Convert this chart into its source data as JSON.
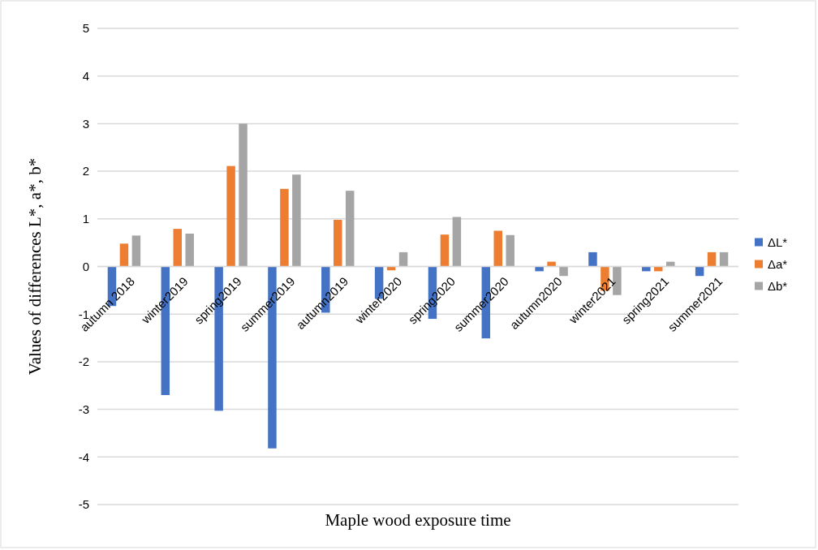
{
  "chart_data": {
    "type": "bar",
    "xlabel": "Maple wood exposure time",
    "ylabel": "Values of differences L*, a*, b*",
    "categories": [
      "autumn 2018",
      "winter2019",
      "spring2019",
      "summer2019",
      "autumn2019",
      "winter2020",
      "spring2020",
      "summer2020",
      "autumn2020",
      "winter2021",
      "spring2021",
      "summer2021"
    ],
    "series": [
      {
        "name": "ΔL*",
        "color": "#4472c4",
        "values": [
          -0.83,
          -2.7,
          -3.03,
          -3.82,
          -0.97,
          -0.68,
          -1.1,
          -1.51,
          -0.1,
          0.3,
          -0.1,
          -0.2
        ]
      },
      {
        "name": "Δa*",
        "color": "#ed7d31",
        "values": [
          0.48,
          0.79,
          2.11,
          1.63,
          0.98,
          -0.08,
          0.67,
          0.75,
          0.1,
          -0.51,
          -0.1,
          0.3
        ]
      },
      {
        "name": "Δb*",
        "color": "#a5a5a5",
        "values": [
          0.65,
          0.69,
          3.0,
          1.93,
          1.59,
          0.3,
          1.04,
          0.66,
          -0.2,
          -0.6,
          0.1,
          0.3
        ]
      }
    ],
    "ylim": [
      -5,
      5
    ],
    "yticks": [
      -5,
      -4,
      -3,
      -2,
      -1,
      0,
      1,
      2,
      3,
      4,
      5
    ],
    "grid": "y",
    "legend": "right"
  }
}
